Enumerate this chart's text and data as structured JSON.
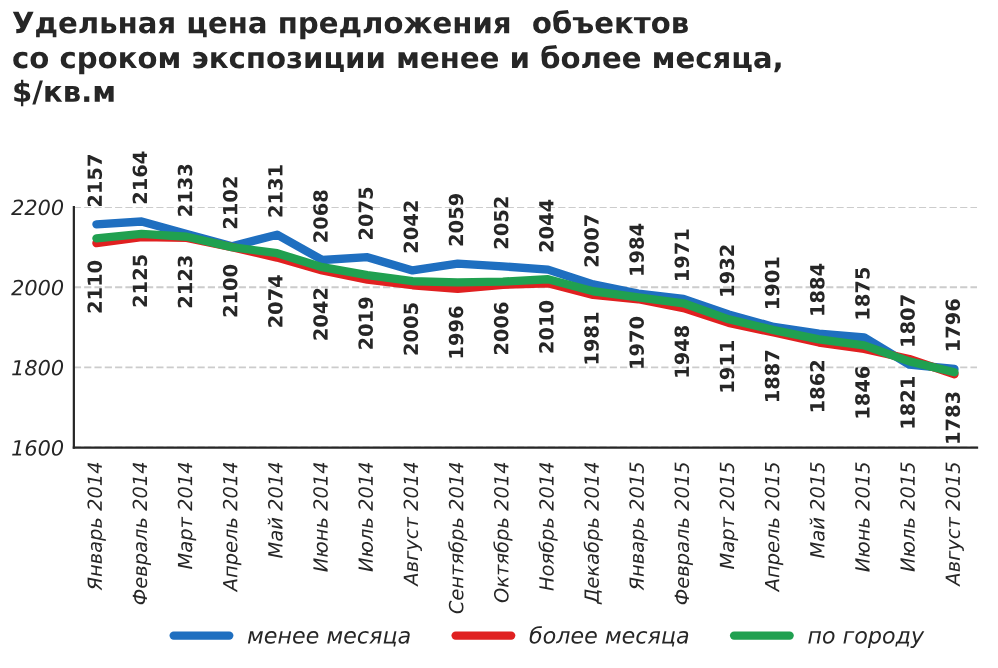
{
  "chart_data": {
    "type": "line",
    "title": "Удельная цена предложения  объектов\nсо сроком экспозиции менее и более месяца,\n$/кв.м",
    "categories": [
      "Январь 2014",
      "Февраль 2014",
      "Март 2014",
      "Апрель 2014",
      "Май 2014",
      "Июнь 2014",
      "Июль 2014",
      "Август 2014",
      "Сентябрь 2014",
      "Октябрь 2014",
      "Ноябрь 2014",
      "Декабрь 2014",
      "Январь 2015",
      "Февраль 2015",
      "Март 2015",
      "Апрель 2015",
      "Май 2015",
      "Июнь 2015",
      "Июль 2015",
      "Август 2015"
    ],
    "series": [
      {
        "name": "менее месяца",
        "color": "#1f6fc0",
        "values": [
          2157,
          2164,
          2133,
          2102,
          2131,
          2068,
          2075,
          2042,
          2059,
          2052,
          2044,
          2007,
          1984,
          1971,
          1932,
          1901,
          1884,
          1875,
          1807,
          1796
        ],
        "data_labels": true
      },
      {
        "name": "более месяца",
        "color": "#e02020",
        "values": [
          2110,
          2125,
          2123,
          2100,
          2074,
          2042,
          2019,
          2005,
          1996,
          2006,
          2010,
          1981,
          1970,
          1948,
          1911,
          1887,
          1862,
          1846,
          1821,
          1783
        ],
        "data_labels": true
      },
      {
        "name": "по городу",
        "color": "#20a050",
        "values": [
          2122,
          2133,
          2126,
          2100,
          2085,
          2050,
          2030,
          2015,
          2012,
          2014,
          2020,
          1990,
          1975,
          1960,
          1920,
          1893,
          1870,
          1855,
          1815,
          1788
        ]
      }
    ],
    "ylim": [
      1600,
      2200
    ],
    "yticks": [
      1600,
      1800,
      2000,
      2200
    ],
    "grid": "y",
    "legend": "bottom",
    "line_style": "solid",
    "marker": "none"
  }
}
